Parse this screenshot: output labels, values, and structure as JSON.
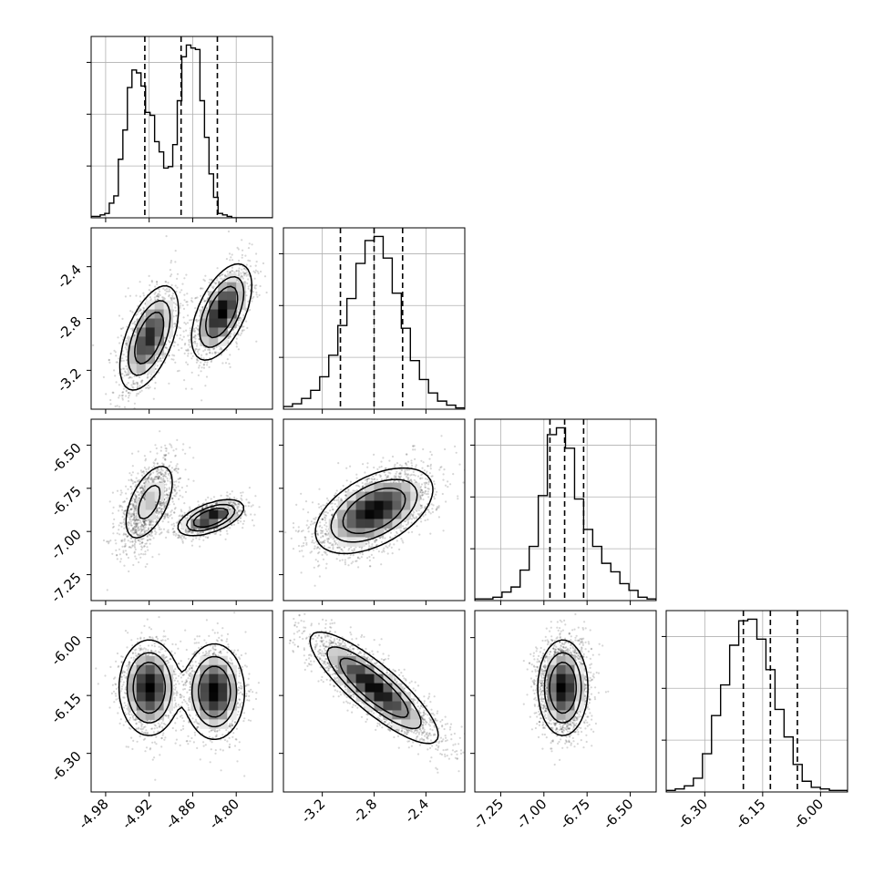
{
  "chart_data": {
    "type": "corner",
    "parameters": [
      {
        "range": [
          -5.0,
          -4.75
        ],
        "ticks": [
          "-4.98",
          "-4.92",
          "-4.86",
          "-4.80"
        ],
        "tick_values": [
          -4.98,
          -4.92,
          -4.86,
          -4.8
        ]
      },
      {
        "range": [
          -3.5,
          -2.1
        ],
        "ticks": [
          "-3.2",
          "-2.8",
          "-2.4"
        ],
        "tick_values": [
          -3.2,
          -2.8,
          -2.4
        ]
      },
      {
        "range": [
          -7.4,
          -6.35
        ],
        "ticks": [
          "-7.25",
          "-7.00",
          "-6.75",
          "-6.50"
        ],
        "tick_values": [
          -7.25,
          -7.0,
          -6.75,
          -6.5
        ]
      },
      {
        "range": [
          -6.4,
          -5.93
        ],
        "ticks": [
          "-6.30",
          "-6.15",
          "-6.00"
        ],
        "tick_values": [
          -6.3,
          -6.15,
          -6.0
        ]
      }
    ],
    "histograms": [
      {
        "bin_start": -5.0,
        "bin_width": 0.00625,
        "counts": [
          1,
          1,
          2,
          3,
          10,
          15,
          40,
          60,
          89,
          101,
          99,
          90,
          72,
          70,
          52,
          45,
          34,
          35,
          50,
          80,
          110,
          118,
          116,
          115,
          80,
          55,
          30,
          14,
          3,
          2,
          1,
          0
        ],
        "quantiles": [
          -4.926,
          -4.876,
          -4.826
        ]
      },
      {
        "bin_start": -3.5,
        "bin_width": 0.07,
        "counts": [
          2,
          4,
          8,
          14,
          24,
          40,
          62,
          82,
          108,
          125,
          128,
          112,
          86,
          60,
          36,
          22,
          12,
          6,
          3,
          1
        ],
        "quantiles": [
          -3.06,
          -2.8,
          -2.58
        ]
      },
      {
        "bin_start": -7.4,
        "bin_width": 0.0525,
        "counts": [
          1,
          1,
          2,
          5,
          8,
          18,
          32,
          62,
          98,
          102,
          90,
          60,
          42,
          32,
          22,
          17,
          10,
          6,
          2,
          1
        ],
        "quantiles": [
          -6.965,
          -6.88,
          -6.77
        ]
      },
      {
        "bin_start": -6.4,
        "bin_width": 0.0235,
        "counts": [
          1,
          2,
          4,
          9,
          25,
          50,
          70,
          96,
          112,
          113,
          100,
          80,
          54,
          36,
          18,
          7,
          3,
          2,
          1,
          1
        ],
        "quantiles": [
          -6.2,
          -6.13,
          -6.06
        ]
      }
    ],
    "pairs": [
      {
        "x": 0,
        "y": 1,
        "components": [
          {
            "mx": -4.92,
            "my": -2.95,
            "sx": 0.02,
            "sy": 0.2,
            "rho": 0.55,
            "w": 0.5
          },
          {
            "mx": -4.82,
            "my": -2.75,
            "sx": 0.02,
            "sy": 0.18,
            "rho": 0.55,
            "w": 0.5
          }
        ]
      },
      {
        "x": 0,
        "y": 2,
        "components": [
          {
            "mx": -4.92,
            "my": -6.83,
            "sx": 0.02,
            "sy": 0.13,
            "rho": 0.55,
            "w": 0.5
          },
          {
            "mx": -4.835,
            "my": -6.92,
            "sx": 0.022,
            "sy": 0.05,
            "rho": 0.55,
            "w": 0.5
          }
        ]
      },
      {
        "x": 1,
        "y": 2,
        "components": [
          {
            "mx": -2.8,
            "my": -6.88,
            "sx": 0.22,
            "sy": 0.12,
            "rho": 0.5,
            "w": 1.0
          }
        ]
      },
      {
        "x": 0,
        "y": 3,
        "components": [
          {
            "mx": -4.92,
            "my": -6.13,
            "sx": 0.02,
            "sy": 0.06,
            "rho": 0.0,
            "w": 0.5
          },
          {
            "mx": -4.83,
            "my": -6.14,
            "sx": 0.02,
            "sy": 0.06,
            "rho": 0.0,
            "w": 0.5
          }
        ]
      },
      {
        "x": 1,
        "y": 3,
        "components": [
          {
            "mx": -2.8,
            "my": -6.13,
            "sx": 0.24,
            "sy": 0.07,
            "rho": -0.85,
            "w": 1.0
          }
        ]
      },
      {
        "x": 2,
        "y": 3,
        "components": [
          {
            "mx": -6.89,
            "my": -6.13,
            "sx": 0.07,
            "sy": 0.06,
            "rho": 0.0,
            "w": 1.0
          }
        ]
      }
    ]
  }
}
